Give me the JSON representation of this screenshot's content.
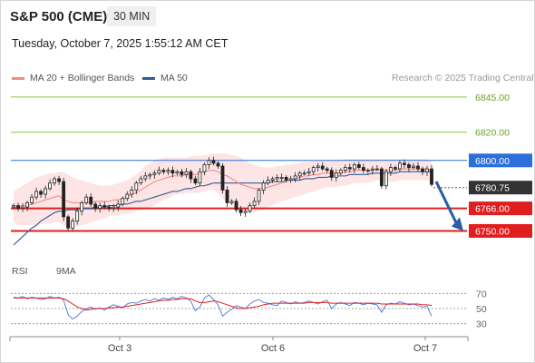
{
  "header": {
    "title": "S&P 500 (CME)",
    "timeframe": "30 MIN",
    "datetime": "Tuesday, October 7, 2025 1:55:12 AM CET"
  },
  "legend": {
    "ma20_label": "MA 20 + Bollinger Bands",
    "ma50_label": "MA 50",
    "credit": "Research © 2025 Trading Central",
    "rsi_label": "RSI",
    "rsi_ma_label": "9MA"
  },
  "colors": {
    "ma20": "#f28b82",
    "ma50": "#2f5b9a",
    "band_fill": "#fde0e0",
    "resistance_green": "#8cc63f",
    "pivot_blue": "#2a6fdb",
    "support_red": "#e01e1e",
    "current_price_bg": "#333333",
    "rsi": "#5b7fd6",
    "rsi_ma": "#e01e1e",
    "arrow": "#2a5ca8"
  },
  "chart_data": {
    "type": "candlestick",
    "x_ticks": [
      "Oct 3",
      "Oct 6",
      "Oct 7"
    ],
    "ylim": [
      6740,
      6852
    ],
    "levels": [
      {
        "value": 6845.0,
        "label": "6845.00",
        "kind": "resistance"
      },
      {
        "value": 6820.0,
        "label": "6820.00",
        "kind": "resistance"
      },
      {
        "value": 6800.0,
        "label": "6800.00",
        "kind": "pivot"
      },
      {
        "value": 6766.0,
        "label": "6766.00",
        "kind": "support"
      },
      {
        "value": 6750.0,
        "label": "6750.00",
        "kind": "support"
      }
    ],
    "current_price": {
      "value": 6780.75,
      "label": "6780.75"
    },
    "forecast_arrow": {
      "from": 6785,
      "to": 6750
    },
    "price_series": [
      6768,
      6766,
      6767,
      6770,
      6774,
      6778,
      6776,
      6780,
      6784,
      6787,
      6785,
      6760,
      6752,
      6757,
      6764,
      6770,
      6774,
      6769,
      6766,
      6768,
      6767,
      6766,
      6767,
      6769,
      6773,
      6776,
      6779,
      6784,
      6787,
      6789,
      6790,
      6791,
      6793,
      6792,
      6793,
      6791,
      6792,
      6790,
      6792,
      6787,
      6784,
      6792,
      6797,
      6800,
      6798,
      6796,
      6779,
      6770,
      6771,
      6765,
      6763,
      6764,
      6768,
      6771,
      6779,
      6784,
      6786,
      6787,
      6788,
      6788,
      6786,
      6787,
      6789,
      6791,
      6791,
      6792,
      6795,
      6796,
      6794,
      6793,
      6788,
      6791,
      6793,
      6795,
      6794,
      6797,
      6795,
      6793,
      6793,
      6794,
      6794,
      6782,
      6792,
      6795,
      6794,
      6798,
      6797,
      6795,
      6796,
      6794,
      6792,
      6794,
      6783
    ],
    "ma20_series": [
      6767,
      6767,
      6768,
      6768,
      6769,
      6770,
      6771,
      6772,
      6773,
      6774,
      6775,
      6772,
      6771,
      6770,
      6770,
      6770,
      6770,
      6770,
      6771,
      6771,
      6771,
      6771,
      6772,
      6772,
      6773,
      6774,
      6776,
      6777,
      6779,
      6781,
      6783,
      6785,
      6786,
      6787,
      6788,
      6789,
      6789,
      6789,
      6790,
      6790,
      6790,
      6791,
      6792,
      6793,
      6793,
      6792,
      6790,
      6789,
      6787,
      6785,
      6783,
      6782,
      6781,
      6780,
      6780,
      6780,
      6781,
      6782,
      6783,
      6784,
      6785,
      6786,
      6787,
      6788,
      6789,
      6789,
      6790,
      6790,
      6791,
      6791,
      6791,
      6791,
      6791,
      6792,
      6792,
      6793,
      6793,
      6793,
      6793,
      6793,
      6794,
      6793,
      6793,
      6793,
      6793,
      6794,
      6794,
      6794,
      6794,
      6794,
      6794,
      6794,
      6792
    ],
    "ma50_series": [
      6740,
      6743,
      6746,
      6749,
      6752,
      6754,
      6757,
      6759,
      6761,
      6763,
      6764,
      6764,
      6765,
      6765,
      6765,
      6766,
      6766,
      6766,
      6767,
      6767,
      6767,
      6768,
      6768,
      6768,
      6769,
      6769,
      6770,
      6771,
      6771,
      6772,
      6773,
      6774,
      6775,
      6776,
      6777,
      6778,
      6778,
      6779,
      6780,
      6780,
      6781,
      6782,
      6782,
      6783,
      6784,
      6784,
      6784,
      6784,
      6784,
      6784,
      6784,
      6784,
      6784,
      6784,
      6784,
      6784,
      6784,
      6785,
      6785,
      6785,
      6785,
      6786,
      6786,
      6786,
      6787,
      6787,
      6787,
      6788,
      6788,
      6788,
      6789,
      6789,
      6789,
      6789,
      6790,
      6790,
      6790,
      6790,
      6790,
      6791,
      6791,
      6791,
      6791,
      6791,
      6791,
      6792,
      6792,
      6792,
      6792,
      6792,
      6792,
      6792,
      6792
    ],
    "band_upper_series": [
      6778,
      6780,
      6782,
      6784,
      6786,
      6788,
      6789,
      6790,
      6791,
      6791,
      6792,
      6792,
      6790,
      6788,
      6787,
      6786,
      6785,
      6784,
      6783,
      6782,
      6782,
      6782,
      6783,
      6784,
      6785,
      6786,
      6788,
      6790,
      6793,
      6796,
      6798,
      6800,
      6801,
      6802,
      6802,
      6802,
      6802,
      6802,
      6802,
      6803,
      6803,
      6803,
      6804,
      6804,
      6805,
      6805,
      6805,
      6805,
      6804,
      6803,
      6802,
      6800,
      6798,
      6797,
      6796,
      6795,
      6795,
      6795,
      6796,
      6796,
      6797,
      6797,
      6798,
      6798,
      6799,
      6799,
      6800,
      6800,
      6800,
      6800,
      6800,
      6800,
      6800,
      6801,
      6801,
      6801,
      6801,
      6801,
      6801,
      6801,
      6801,
      6801,
      6801,
      6801,
      6801,
      6801,
      6801,
      6801,
      6801,
      6801,
      6801,
      6801,
      6800
    ],
    "band_lower_series": [
      6756,
      6754,
      6754,
      6754,
      6754,
      6754,
      6755,
      6755,
      6755,
      6756,
      6756,
      6754,
      6752,
      6752,
      6753,
      6754,
      6755,
      6756,
      6757,
      6758,
      6759,
      6760,
      6761,
      6761,
      6762,
      6762,
      6763,
      6764,
      6765,
      6766,
      6767,
      6768,
      6770,
      6772,
      6773,
      6775,
      6776,
      6776,
      6777,
      6777,
      6777,
      6777,
      6778,
      6779,
      6779,
      6777,
      6773,
      6770,
      6768,
      6766,
      6764,
      6763,
      6763,
      6763,
      6764,
      6765,
      6767,
      6768,
      6770,
      6771,
      6772,
      6773,
      6774,
      6775,
      6776,
      6777,
      6778,
      6779,
      6780,
      6781,
      6781,
      6781,
      6782,
      6782,
      6783,
      6784,
      6784,
      6784,
      6784,
      6785,
      6786,
      6785,
      6785,
      6785,
      6785,
      6786,
      6786,
      6786,
      6786,
      6786,
      6786,
      6786,
      6784
    ],
    "rsi": {
      "ylim": [
        20,
        80
      ],
      "ticks": [
        70,
        50,
        30
      ],
      "rsi_series": [
        65,
        64,
        66,
        63,
        65,
        64,
        62,
        63,
        66,
        64,
        65,
        61,
        42,
        36,
        40,
        46,
        50,
        52,
        49,
        51,
        48,
        52,
        55,
        53,
        51,
        56,
        58,
        57,
        60,
        62,
        60,
        63,
        61,
        64,
        62,
        65,
        63,
        66,
        64,
        60,
        47,
        52,
        64,
        68,
        62,
        55,
        40,
        45,
        49,
        54,
        52,
        50,
        56,
        60,
        62,
        58,
        57,
        55,
        54,
        60,
        58,
        56,
        59,
        57,
        58,
        60,
        58,
        56,
        59,
        61,
        50,
        56,
        58,
        56,
        54,
        58,
        57,
        55,
        57,
        56,
        55,
        45,
        55,
        57,
        56,
        59,
        57,
        55,
        56,
        54,
        52,
        53,
        40
      ],
      "ma_series": [
        64,
        64,
        64,
        64,
        64,
        64,
        64,
        64,
        64,
        64,
        64,
        63,
        60,
        56,
        52,
        50,
        48,
        49,
        50,
        50,
        50,
        51,
        51,
        52,
        52,
        53,
        54,
        55,
        56,
        57,
        58,
        59,
        60,
        61,
        61,
        62,
        62,
        63,
        63,
        63,
        60,
        58,
        58,
        59,
        60,
        59,
        57,
        55,
        53,
        51,
        50,
        50,
        51,
        52,
        53,
        55,
        56,
        57,
        57,
        57,
        57,
        57,
        57,
        57,
        57,
        58,
        58,
        58,
        58,
        58,
        57,
        57,
        57,
        57,
        57,
        57,
        57,
        57,
        57,
        57,
        57,
        56,
        56,
        56,
        56,
        56,
        56,
        56,
        56,
        56,
        55,
        55,
        54
      ]
    }
  }
}
